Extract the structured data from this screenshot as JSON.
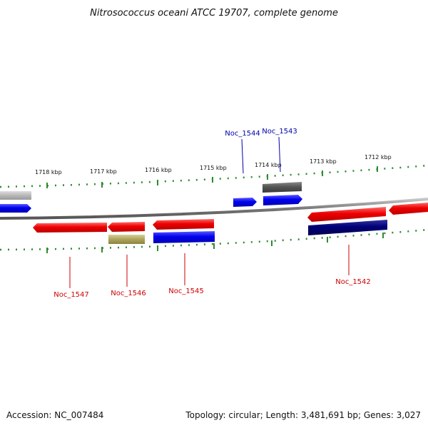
{
  "title": "Nitrosococcus oceani ATCC 19707, complete genome",
  "accession": "Accession: NC_007484",
  "summary": "Topology: circular; Length: 3,481,691 bp; Genes: 3,027",
  "colors": {
    "backbone": "#8a8a8a",
    "tick": "#2e8b2e",
    "forward_gene": "#0000ee",
    "reverse_gene": "#ee0000",
    "rna_gene": "#555555",
    "other_gene": "#b0a860",
    "dark_gene": "#000077",
    "grey_gene": "#bbbbbb",
    "label_forward": "#0000aa",
    "label_reverse": "#cc0000"
  },
  "ticks": [
    {
      "label": "1718 kbp"
    },
    {
      "label": "1717 kbp"
    },
    {
      "label": "1716 kbp"
    },
    {
      "label": "1715 kbp"
    },
    {
      "label": "1714 kbp"
    },
    {
      "label": "1713 kbp"
    },
    {
      "label": "1712 kbp"
    }
  ],
  "genes": [
    {
      "label": "Noc_1547",
      "strand": "reverse",
      "color": "reverse_gene"
    },
    {
      "label": "Noc_1546",
      "strand": "reverse",
      "color": "reverse_gene"
    },
    {
      "label": "Noc_1545",
      "strand": "reverse",
      "color": "reverse_gene"
    },
    {
      "label": "Noc_1544",
      "strand": "forward",
      "color": "forward_gene"
    },
    {
      "label": "Noc_1543",
      "strand": "forward",
      "color": "forward_gene"
    },
    {
      "label": "Noc_1542",
      "strand": "reverse",
      "color": "reverse_gene"
    }
  ]
}
